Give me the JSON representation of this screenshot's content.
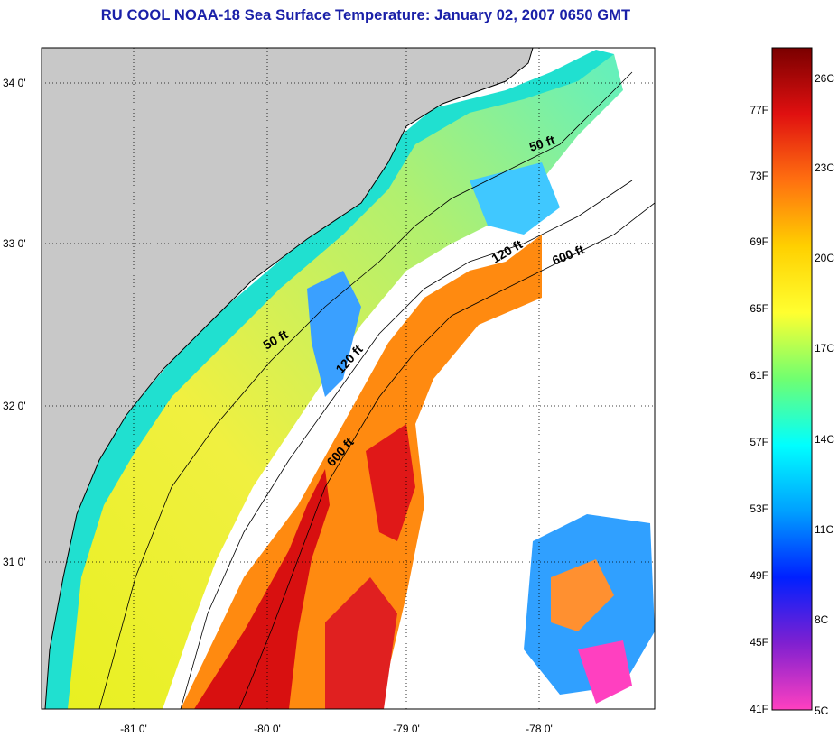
{
  "title": "RU COOL  NOAA-18  Sea Surface Temperature:  January 02, 2007 0650 GMT",
  "map": {
    "lon_ticks": [
      "-81 0'",
      "-80 0'",
      "-79 0'",
      "-78 0'"
    ],
    "lat_ticks": [
      "34 0'",
      "33 0'",
      "32 0'",
      "31 0'"
    ],
    "isobaths": [
      {
        "label": "50 ft"
      },
      {
        "label": "50 ft"
      },
      {
        "label": "120 ft"
      },
      {
        "label": "120 ft"
      },
      {
        "label": "600 ft"
      },
      {
        "label": "600 ft"
      }
    ],
    "colors": {
      "land": "#c8c8c8",
      "cloud": "#ffffff",
      "warm": "#c81010",
      "cool": "#10d8e0"
    }
  },
  "colorbar": {
    "fahrenheit_labels": [
      "77F",
      "73F",
      "69F",
      "65F",
      "61F",
      "57F",
      "53F",
      "49F",
      "45F",
      "41F"
    ],
    "celsius_labels": [
      "26C",
      "23C",
      "20C",
      "17C",
      "14C",
      "11C",
      "8C",
      "5C"
    ],
    "gradient_colors": [
      "#7a0000",
      "#e01010",
      "#ff7010",
      "#ffd000",
      "#ffff30",
      "#70ff70",
      "#00ffff",
      "#00a0ff",
      "#0020ff",
      "#8020d0",
      "#ff40c0"
    ]
  }
}
